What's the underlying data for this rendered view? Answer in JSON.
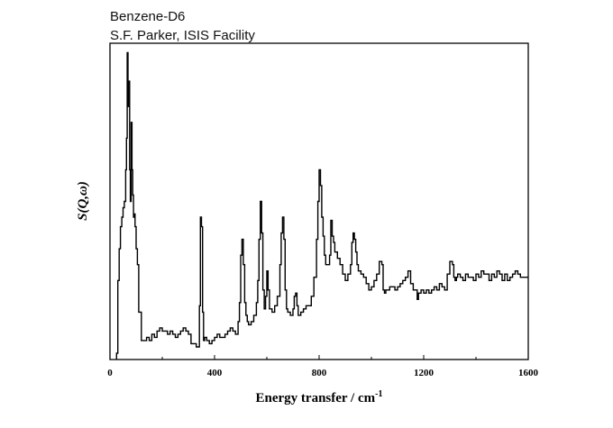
{
  "chart_data": {
    "type": "line",
    "title": "Benzene-D6",
    "subtitle": "S.F. Parker, ISIS Facility",
    "xlabel": "Energy transfer / cm",
    "xlabel_sup": "-1",
    "ylabel": "S(Q,ω)",
    "xlim": [
      0,
      1600
    ],
    "ylim": [
      0,
      1
    ],
    "x_ticks": [
      0,
      400,
      800,
      1200,
      1600
    ],
    "x_tick_labels": [
      "0",
      "400",
      "800",
      "1200",
      "1600"
    ],
    "grid": false,
    "legend": "none",
    "line_color": "#000000",
    "step": true,
    "series": [
      {
        "x": [
          25,
          30,
          35,
          40,
          45,
          50,
          55,
          60,
          63,
          66,
          69,
          72,
          75,
          78,
          81,
          84,
          87,
          90,
          93,
          96,
          100,
          105,
          110,
          120,
          130,
          140,
          150,
          160,
          170,
          180,
          190,
          200,
          210,
          220,
          230,
          240,
          250,
          260,
          270,
          280,
          290,
          300,
          310,
          320,
          330,
          338,
          342,
          346,
          350,
          354,
          358,
          362,
          370,
          380,
          390,
          400,
          410,
          420,
          430,
          440,
          450,
          460,
          470,
          480,
          490,
          495,
          500,
          505,
          510,
          515,
          520,
          525,
          530,
          540,
          550,
          560,
          565,
          570,
          575,
          580,
          585,
          590,
          595,
          600,
          605,
          610,
          620,
          630,
          640,
          650,
          655,
          660,
          665,
          670,
          675,
          680,
          690,
          700,
          705,
          710,
          715,
          720,
          730,
          740,
          750,
          760,
          770,
          780,
          790,
          795,
          800,
          805,
          810,
          815,
          820,
          825,
          830,
          840,
          845,
          850,
          855,
          860,
          870,
          880,
          890,
          900,
          910,
          920,
          925,
          930,
          935,
          940,
          945,
          950,
          960,
          970,
          980,
          990,
          1000,
          1010,
          1020,
          1030,
          1040,
          1045,
          1050,
          1055,
          1060,
          1070,
          1080,
          1090,
          1100,
          1110,
          1120,
          1130,
          1140,
          1150,
          1160,
          1170,
          1175,
          1180,
          1190,
          1200,
          1210,
          1220,
          1230,
          1240,
          1250,
          1260,
          1270,
          1280,
          1290,
          1300,
          1310,
          1315,
          1320,
          1325,
          1330,
          1340,
          1350,
          1360,
          1370,
          1380,
          1390,
          1400,
          1410,
          1420,
          1430,
          1440,
          1450,
          1460,
          1470,
          1480,
          1490,
          1500,
          1510,
          1520,
          1530,
          1540,
          1550,
          1560,
          1570,
          1580,
          1590,
          1600
        ],
        "y": [
          0.02,
          0.25,
          0.35,
          0.42,
          0.45,
          0.48,
          0.5,
          0.6,
          0.7,
          0.97,
          0.8,
          0.88,
          0.6,
          0.5,
          0.75,
          0.6,
          0.52,
          0.45,
          0.46,
          0.42,
          0.35,
          0.3,
          0.15,
          0.06,
          0.06,
          0.07,
          0.06,
          0.08,
          0.07,
          0.09,
          0.1,
          0.09,
          0.09,
          0.08,
          0.09,
          0.08,
          0.07,
          0.08,
          0.09,
          0.1,
          0.09,
          0.08,
          0.05,
          0.05,
          0.04,
          0.04,
          0.17,
          0.45,
          0.42,
          0.15,
          0.06,
          0.07,
          0.06,
          0.05,
          0.06,
          0.07,
          0.08,
          0.07,
          0.07,
          0.08,
          0.09,
          0.1,
          0.09,
          0.08,
          0.12,
          0.18,
          0.33,
          0.38,
          0.3,
          0.18,
          0.14,
          0.12,
          0.11,
          0.12,
          0.14,
          0.18,
          0.25,
          0.38,
          0.5,
          0.4,
          0.22,
          0.16,
          0.2,
          0.28,
          0.22,
          0.16,
          0.15,
          0.17,
          0.2,
          0.3,
          0.4,
          0.45,
          0.38,
          0.22,
          0.16,
          0.15,
          0.14,
          0.16,
          0.2,
          0.21,
          0.17,
          0.14,
          0.15,
          0.16,
          0.17,
          0.17,
          0.2,
          0.26,
          0.38,
          0.5,
          0.6,
          0.55,
          0.45,
          0.39,
          0.33,
          0.3,
          0.3,
          0.33,
          0.44,
          0.39,
          0.37,
          0.34,
          0.32,
          0.3,
          0.27,
          0.25,
          0.27,
          0.3,
          0.37,
          0.4,
          0.38,
          0.34,
          0.3,
          0.28,
          0.27,
          0.26,
          0.24,
          0.22,
          0.23,
          0.25,
          0.27,
          0.31,
          0.3,
          0.22,
          0.21,
          0.22,
          0.22,
          0.23,
          0.23,
          0.22,
          0.23,
          0.24,
          0.25,
          0.26,
          0.28,
          0.24,
          0.22,
          0.22,
          0.19,
          0.21,
          0.22,
          0.21,
          0.22,
          0.21,
          0.22,
          0.23,
          0.22,
          0.24,
          0.23,
          0.22,
          0.27,
          0.31,
          0.3,
          0.26,
          0.25,
          0.26,
          0.27,
          0.26,
          0.25,
          0.27,
          0.26,
          0.26,
          0.25,
          0.27,
          0.26,
          0.28,
          0.27,
          0.27,
          0.25,
          0.27,
          0.26,
          0.28,
          0.27,
          0.25,
          0.27,
          0.25,
          0.26,
          0.27,
          0.28,
          0.27,
          0.26,
          0.26,
          0.26,
          0.26
        ]
      }
    ]
  }
}
